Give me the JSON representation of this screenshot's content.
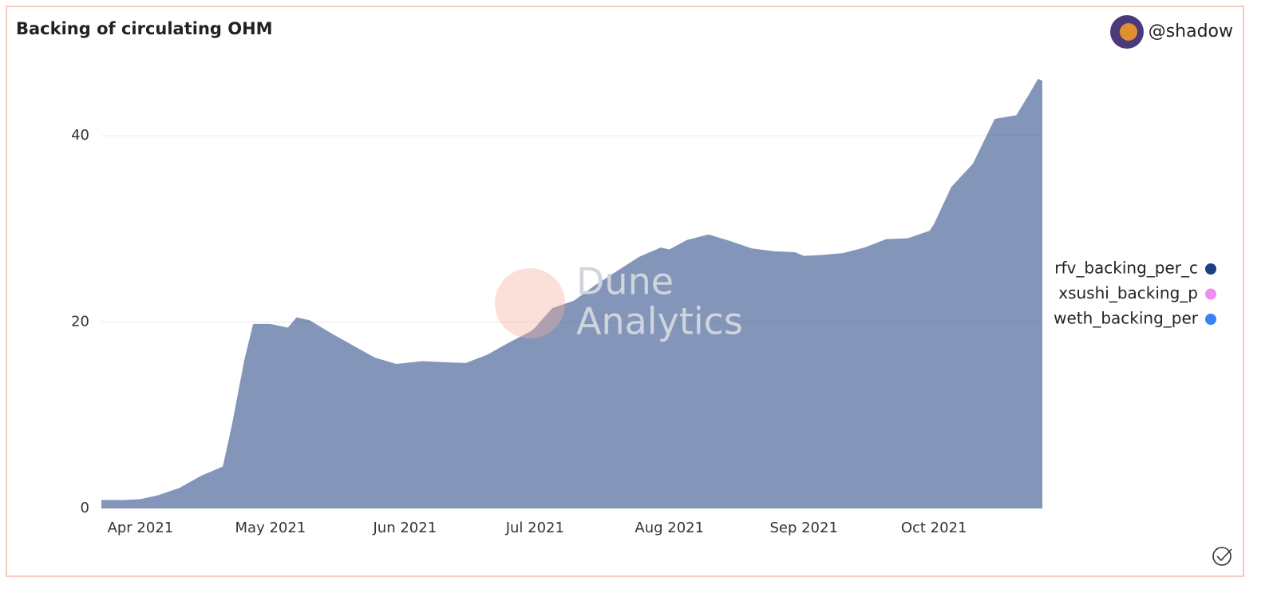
{
  "chart_data": {
    "type": "area",
    "stacked": true,
    "title": "Backing of circulating OHM",
    "author": "@shadow",
    "watermark": [
      "Dune",
      "Analytics"
    ],
    "x": [
      "2021-03-23",
      "2021-03-28",
      "2021-04-01",
      "2021-04-05",
      "2021-04-10",
      "2021-04-15",
      "2021-04-20",
      "2021-04-22",
      "2021-04-25",
      "2021-04-27",
      "2021-05-01",
      "2021-05-05",
      "2021-05-07",
      "2021-05-10",
      "2021-05-15",
      "2021-05-20",
      "2021-05-25",
      "2021-05-30",
      "2021-06-01",
      "2021-06-05",
      "2021-06-10",
      "2021-06-15",
      "2021-06-20",
      "2021-06-25",
      "2021-06-30",
      "2021-07-01",
      "2021-07-05",
      "2021-07-10",
      "2021-07-15",
      "2021-07-20",
      "2021-07-25",
      "2021-07-30",
      "2021-08-01",
      "2021-08-05",
      "2021-08-10",
      "2021-08-15",
      "2021-08-20",
      "2021-08-25",
      "2021-08-30",
      "2021-09-01",
      "2021-09-05",
      "2021-09-10",
      "2021-09-15",
      "2021-09-20",
      "2021-09-25",
      "2021-09-30",
      "2021-10-01",
      "2021-10-05",
      "2021-10-10",
      "2021-10-15",
      "2021-10-20",
      "2021-10-23",
      "2021-10-25",
      "2021-10-26"
    ],
    "series": [
      {
        "name": "rfv_backing_per_c",
        "color": "#1e3f82",
        "values": [
          0.9,
          0.9,
          1.0,
          1.4,
          2.2,
          3.5,
          4.5,
          8.7,
          16,
          19.8,
          19.8,
          19.4,
          20.5,
          20.2,
          18.8,
          17.5,
          16.2,
          15.5,
          15.6,
          15.8,
          15.7,
          15.6,
          16.5,
          17.8,
          19.0,
          19.4,
          21.5,
          22.3,
          24.0,
          25.5,
          27.0,
          28.0,
          27.8,
          28.8,
          29.4,
          28.7,
          27.9,
          27.6,
          27.5,
          27.1,
          27.2,
          27.4,
          28.0,
          28.9,
          29.0,
          29.8,
          30.5,
          34.5,
          37.0,
          41.8,
          42.2,
          44.5,
          46.1,
          45.9
        ]
      },
      {
        "name": "xsushi_backing_p",
        "color": "#f08cf2",
        "values": [
          0,
          0,
          0,
          0,
          0,
          0,
          0,
          0,
          0,
          0,
          0,
          0,
          0,
          0,
          0,
          0,
          0,
          0,
          0,
          0,
          0,
          0,
          0,
          0,
          0,
          0,
          0,
          0,
          0,
          0,
          0,
          0,
          0,
          0,
          0,
          0,
          0,
          0,
          0,
          0,
          0,
          0,
          0,
          0,
          0,
          0,
          0,
          0,
          0,
          0,
          0,
          0,
          0,
          0
        ]
      },
      {
        "name": "weth_backing_per",
        "color": "#3b82f6",
        "values": [
          0,
          0,
          0,
          0,
          0,
          0,
          0,
          0,
          0,
          0,
          0,
          0,
          0,
          0,
          0,
          0,
          0,
          0,
          0,
          0,
          0,
          0,
          0,
          0,
          0,
          0,
          0,
          0,
          0,
          0,
          0,
          0,
          0,
          0,
          0,
          0,
          0,
          0,
          0,
          0,
          0,
          0,
          0,
          0,
          0,
          0,
          0,
          0,
          0,
          0,
          0,
          0,
          0,
          0
        ]
      }
    ],
    "xlim": [
      "2021-03-23",
      "2021-10-26"
    ],
    "xticks": [
      {
        "value": "2021-04-01",
        "label": "Apr 2021"
      },
      {
        "value": "2021-05-01",
        "label": "May 2021"
      },
      {
        "value": "2021-06-01",
        "label": "Jun 2021"
      },
      {
        "value": "2021-07-01",
        "label": "Jul 2021"
      },
      {
        "value": "2021-08-01",
        "label": "Aug 2021"
      },
      {
        "value": "2021-09-01",
        "label": "Sep 2021"
      },
      {
        "value": "2021-10-01",
        "label": "Oct 2021"
      }
    ],
    "ylim": [
      0,
      47
    ],
    "yticks": [
      0,
      20,
      40
    ],
    "grid": true,
    "legend": "right"
  }
}
